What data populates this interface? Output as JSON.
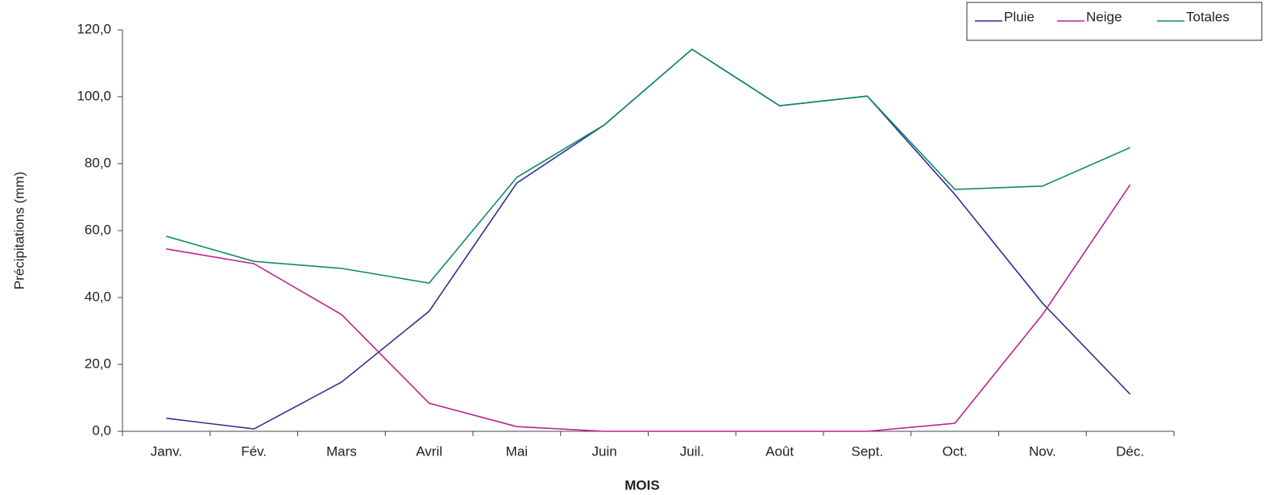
{
  "chart_data": {
    "type": "line",
    "xlabel": "MOIS",
    "ylabel": "Précipitations (mm)",
    "categories": [
      "Janv.",
      "Fév.",
      "Mars",
      "Avril",
      "Mai",
      "Juin",
      "Juil.",
      "Août",
      "Sept.",
      "Oct.",
      "Nov.",
      "Déc."
    ],
    "series": [
      {
        "name": "Pluie",
        "color": "#2e3192",
        "values": [
          3.9,
          0.7,
          14.7,
          35.9,
          74.2,
          91.6,
          114.2,
          97.3,
          100.2,
          70.8,
          38.3,
          11.1
        ]
      },
      {
        "name": "Neige",
        "color": "#c0208f",
        "values": [
          54.5,
          50.1,
          34.9,
          8.4,
          1.4,
          0,
          0,
          0,
          0,
          2.4,
          34.9,
          73.7
        ]
      },
      {
        "name": "Totales",
        "color": "#138a6e",
        "values": [
          58.3,
          50.8,
          48.7,
          44.3,
          75.9,
          91.6,
          114.2,
          97.3,
          100.2,
          72.3,
          73.3,
          84.8
        ]
      }
    ],
    "ylim": [
      0,
      120
    ],
    "yticks": [
      {
        "value": 0,
        "label": "0,0"
      },
      {
        "value": 20,
        "label": "20,0"
      },
      {
        "value": 40,
        "label": "40,0"
      },
      {
        "value": 60,
        "label": "60,0"
      },
      {
        "value": 80,
        "label": "80,0"
      },
      {
        "value": 100,
        "label": "100,0"
      },
      {
        "value": 120,
        "label": "120,0"
      }
    ],
    "grid": false,
    "legend": "top-right"
  }
}
